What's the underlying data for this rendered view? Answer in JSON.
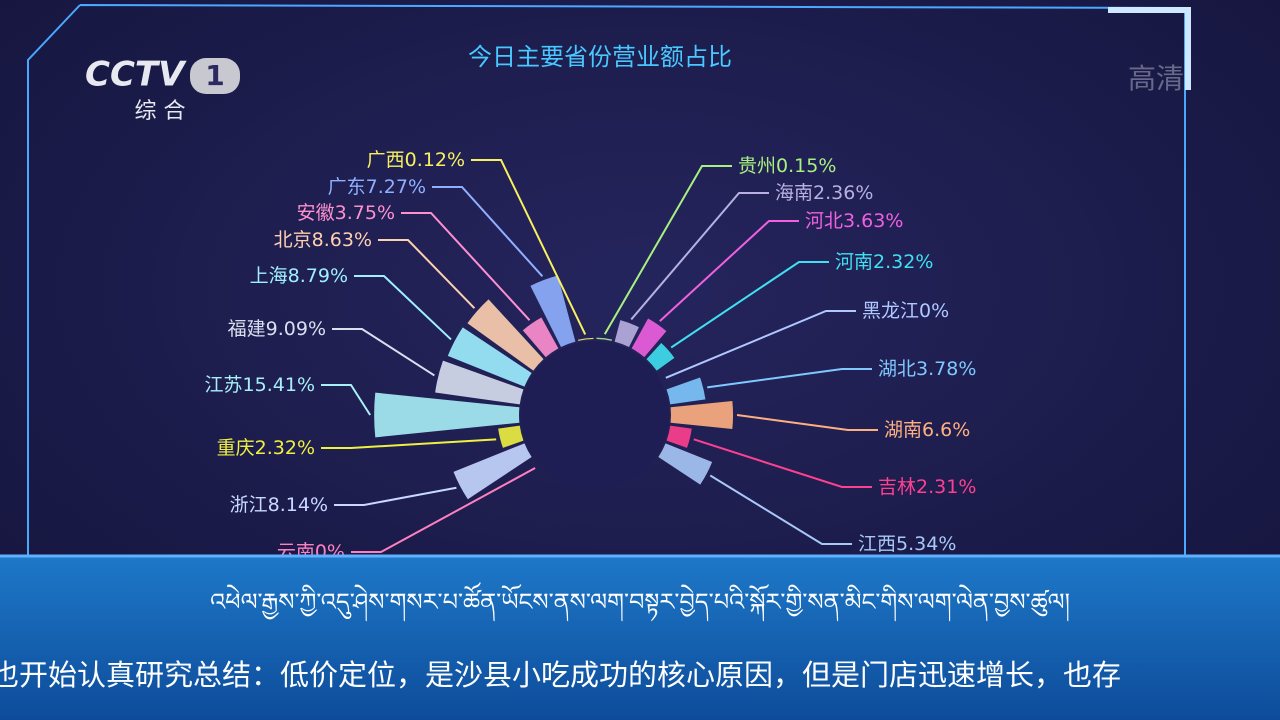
{
  "chart_data": {
    "type": "rose",
    "title": "今日主要省份营业额占比",
    "categories": [
      "贵州",
      "海南",
      "河北",
      "河南",
      "黑龙江",
      "湖北",
      "湖南",
      "吉林",
      "江西",
      "云南",
      "浙江",
      "重庆",
      "江苏",
      "福建",
      "上海",
      "北京",
      "安徽",
      "广东",
      "广西"
    ],
    "values": [
      0.15,
      2.36,
      3.63,
      2.32,
      0,
      3.78,
      6.6,
      2.31,
      5.34,
      0,
      8.14,
      2.32,
      15.41,
      9.09,
      8.79,
      8.63,
      3.75,
      7.27,
      0.12
    ],
    "value_labels": [
      "0.15%",
      "2.36%",
      "3.63%",
      "2.32%",
      "0%",
      "3.78%",
      "6.6%",
      "2.31%",
      "5.34%",
      "0%",
      "8.14%",
      "2.32%",
      "15.41%",
      "9.09%",
      "8.79%",
      "8.63%",
      "3.75%",
      "7.27%",
      "0.12%"
    ],
    "colors": [
      "#a8f080",
      "#b8b0e0",
      "#f060e0",
      "#40e0f0",
      "#b0c8ff",
      "#80c8ff",
      "#ffb080",
      "#ff4090",
      "#a8c8f8",
      "#ff80c0",
      "#c8d8ff",
      "#f0f040",
      "#a8f0f8",
      "#d8e0f0",
      "#a0f0ff",
      "#ffd0b0",
      "#ff90d0",
      "#90b0ff",
      "#f8f060"
    ]
  },
  "overlay": {
    "logo": "CCTV",
    "channel": "1",
    "channel_name": "综 合",
    "hd": "高清",
    "subtitle_tibetan": "འཕེལ་རྒྱས་ཀྱི་འདུ་ཤེས་གསར་པ་ཚོན་ཡོངས་ནས་ལག་བསྟར་བྱེད་པའི་སྐོར་གྱི་སན་མིང་གིས་ལག་ལེན་བྱས་ཚུལ།",
    "subtitle_chinese": "也开始认真研究总结：低价定位，是沙县小吃成功的核心原因，但是门店迅速增长，也存"
  }
}
